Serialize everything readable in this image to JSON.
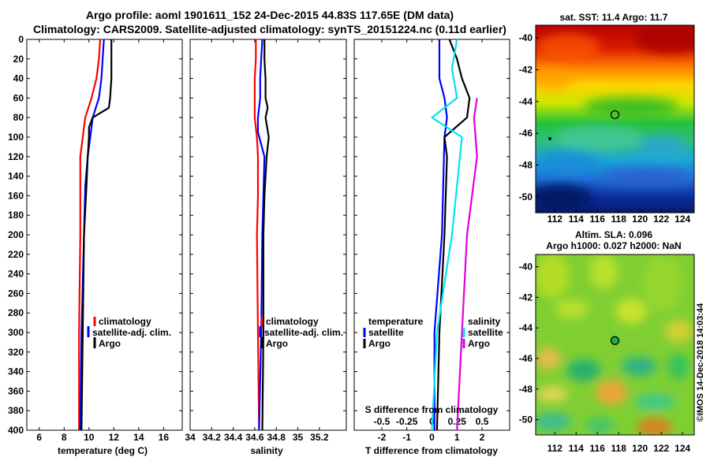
{
  "title_line1": "Argo profile: aoml 1901611_152 24-Dec-2015 44.83S 117.65E (DM data)",
  "title_line2": "Climatology: CARS2009. Satellite-adjusted climatology: synTS_20151224.nc (0.11d earlier)",
  "sst_title": "sat. SST: 11.4 Argo: 11.7",
  "sla_title1": "Altim. SLA: 0.096",
  "sla_title2": "Argo h1000: 0.027 h2000: NaN",
  "side_label": "©IMOS 14-Dec-2018 14:03:44",
  "colors": {
    "climatology": "#ff0000",
    "satellite": "#0000ff",
    "argo": "#000000",
    "sal_satellite": "#00e5ee",
    "sal_argo": "#e000e0"
  },
  "legend": {
    "climatology": "climatology",
    "satellite_adj": "satellite-adj. clim.",
    "argo": "Argo",
    "temperature_head": "temperature",
    "salinity_head": "salinity",
    "satellite": "satellite"
  },
  "chart_data": [
    {
      "type": "line",
      "id": "temperature",
      "xlabel": "temperature (deg C)",
      "ylabel": "",
      "xlim": [
        5,
        17.5
      ],
      "ylim": [
        0,
        400
      ],
      "xticks": [
        6,
        8,
        10,
        12,
        14,
        16
      ],
      "yticks": [
        0,
        20,
        40,
        60,
        80,
        100,
        120,
        140,
        160,
        180,
        200,
        220,
        240,
        260,
        280,
        300,
        320,
        340,
        360,
        380,
        400
      ],
      "series": [
        {
          "name": "climatology",
          "color_key": "climatology",
          "points": [
            [
              10.9,
              0
            ],
            [
              10.8,
              20
            ],
            [
              10.6,
              40
            ],
            [
              10.2,
              60
            ],
            [
              9.7,
              80
            ],
            [
              9.5,
              100
            ],
            [
              9.3,
              120
            ],
            [
              9.3,
              160
            ],
            [
              9.3,
              200
            ],
            [
              9.2,
              300
            ],
            [
              9.2,
              400
            ]
          ]
        },
        {
          "name": "satellite-adj. clim.",
          "color_key": "satellite",
          "points": [
            [
              11.2,
              0
            ],
            [
              11.1,
              20
            ],
            [
              11.0,
              40
            ],
            [
              10.8,
              60
            ],
            [
              10.3,
              80
            ],
            [
              10.1,
              100
            ],
            [
              9.9,
              120
            ],
            [
              9.7,
              150
            ],
            [
              9.6,
              200
            ],
            [
              9.4,
              300
            ],
            [
              9.3,
              400
            ]
          ]
        },
        {
          "name": "Argo",
          "color_key": "argo",
          "points": [
            [
              11.8,
              0
            ],
            [
              11.8,
              20
            ],
            [
              11.8,
              40
            ],
            [
              11.7,
              60
            ],
            [
              11.6,
              70
            ],
            [
              10.3,
              80
            ],
            [
              10.0,
              90
            ],
            [
              10.0,
              100
            ],
            [
              9.9,
              120
            ],
            [
              9.8,
              150
            ],
            [
              9.6,
              200
            ],
            [
              9.5,
              300
            ],
            [
              9.4,
              400
            ]
          ]
        }
      ]
    },
    {
      "type": "line",
      "id": "salinity",
      "xlabel": "salinity",
      "xlim": [
        34,
        35.45
      ],
      "ylim": [
        0,
        400
      ],
      "xticks": [
        34,
        34.2,
        34.4,
        34.6,
        34.8,
        35,
        35.2
      ],
      "series": [
        {
          "name": "climatology",
          "color_key": "climatology",
          "points": [
            [
              34.61,
              0
            ],
            [
              34.61,
              20
            ],
            [
              34.6,
              40
            ],
            [
              34.6,
              60
            ],
            [
              34.6,
              80
            ],
            [
              34.62,
              100
            ],
            [
              34.63,
              120
            ],
            [
              34.63,
              160
            ],
            [
              34.62,
              200
            ],
            [
              34.63,
              300
            ],
            [
              34.64,
              400
            ]
          ]
        },
        {
          "name": "satellite-adj. clim.",
          "color_key": "satellite",
          "points": [
            [
              34.67,
              0
            ],
            [
              34.66,
              20
            ],
            [
              34.65,
              40
            ],
            [
              34.65,
              60
            ],
            [
              34.63,
              80
            ],
            [
              34.63,
              95
            ],
            [
              34.69,
              120
            ],
            [
              34.68,
              160
            ],
            [
              34.67,
              200
            ],
            [
              34.66,
              300
            ],
            [
              34.64,
              400
            ]
          ]
        },
        {
          "name": "Argo",
          "color_key": "argo",
          "points": [
            [
              34.69,
              0
            ],
            [
              34.69,
              20
            ],
            [
              34.7,
              40
            ],
            [
              34.7,
              60
            ],
            [
              34.72,
              70
            ],
            [
              34.7,
              80
            ],
            [
              34.73,
              100
            ],
            [
              34.71,
              120
            ],
            [
              34.69,
              160
            ],
            [
              34.68,
              200
            ],
            [
              34.68,
              300
            ],
            [
              34.67,
              400
            ]
          ]
        }
      ]
    },
    {
      "type": "line",
      "id": "difference",
      "xlabel": "T difference from climatology",
      "xlabel_top": "S difference from climatology",
      "xlim": [
        -3.1,
        3.1
      ],
      "ylim": [
        0,
        400
      ],
      "xticks": [
        -2,
        -1,
        0,
        1,
        2
      ],
      "xticks_top": [
        "-0.5",
        "-0.25",
        "0",
        "0.25",
        "0.5"
      ],
      "series": [
        {
          "name": "temperature satellite",
          "color_key": "satellite",
          "points": [
            [
              0.3,
              0
            ],
            [
              0.3,
              40
            ],
            [
              0.5,
              60
            ],
            [
              0.6,
              80
            ],
            [
              0.5,
              100
            ],
            [
              0.4,
              200
            ],
            [
              0.1,
              300
            ],
            [
              0.1,
              400
            ]
          ]
        },
        {
          "name": "temperature Argo",
          "color_key": "argo",
          "points": [
            [
              0.7,
              0
            ],
            [
              1.0,
              20
            ],
            [
              1.2,
              40
            ],
            [
              1.5,
              60
            ],
            [
              1.4,
              80
            ],
            [
              0.5,
              100
            ],
            [
              0.6,
              120
            ],
            [
              0.5,
              200
            ],
            [
              0.3,
              300
            ],
            [
              0.2,
              400
            ]
          ]
        },
        {
          "name": "salinity satellite",
          "color_key": "sal_satellite",
          "points": [
            [
              0.25,
              0
            ],
            [
              0.2,
              30
            ],
            [
              0.25,
              60
            ],
            [
              0.0,
              80
            ],
            [
              0.3,
              100
            ],
            [
              0.2,
              200
            ],
            [
              0.05,
              300
            ],
            [
              0.0,
              400
            ]
          ]
        },
        {
          "name": "salinity Argo",
          "color_key": "sal_argo",
          "points": [
            [
              0.45,
              60
            ],
            [
              0.42,
              80
            ],
            [
              0.45,
              120
            ],
            [
              0.35,
              200
            ],
            [
              0.3,
              300
            ],
            [
              0.25,
              400
            ]
          ]
        }
      ]
    },
    {
      "type": "heatmap",
      "id": "sst_map",
      "title": "sat. SST: 11.4 Argo: 11.7",
      "xticks": [
        112,
        114,
        116,
        118,
        120,
        122,
        124
      ],
      "yticks": [
        -40,
        -42,
        -44,
        -46,
        -48,
        -50
      ],
      "xlim": [
        110.2,
        125.1
      ],
      "ylim": [
        -51,
        -39.2
      ],
      "float_position": [
        117.65,
        -44.83
      ]
    },
    {
      "type": "heatmap",
      "id": "sla_map",
      "title": "Altim. SLA: 0.096",
      "xticks": [
        112,
        114,
        116,
        118,
        120,
        122,
        124
      ],
      "yticks": [
        -40,
        -42,
        -44,
        -46,
        -48,
        -50
      ],
      "xlim": [
        110.2,
        125.1
      ],
      "ylim": [
        -51,
        -39.2
      ],
      "float_position": [
        117.65,
        -44.83
      ]
    }
  ]
}
